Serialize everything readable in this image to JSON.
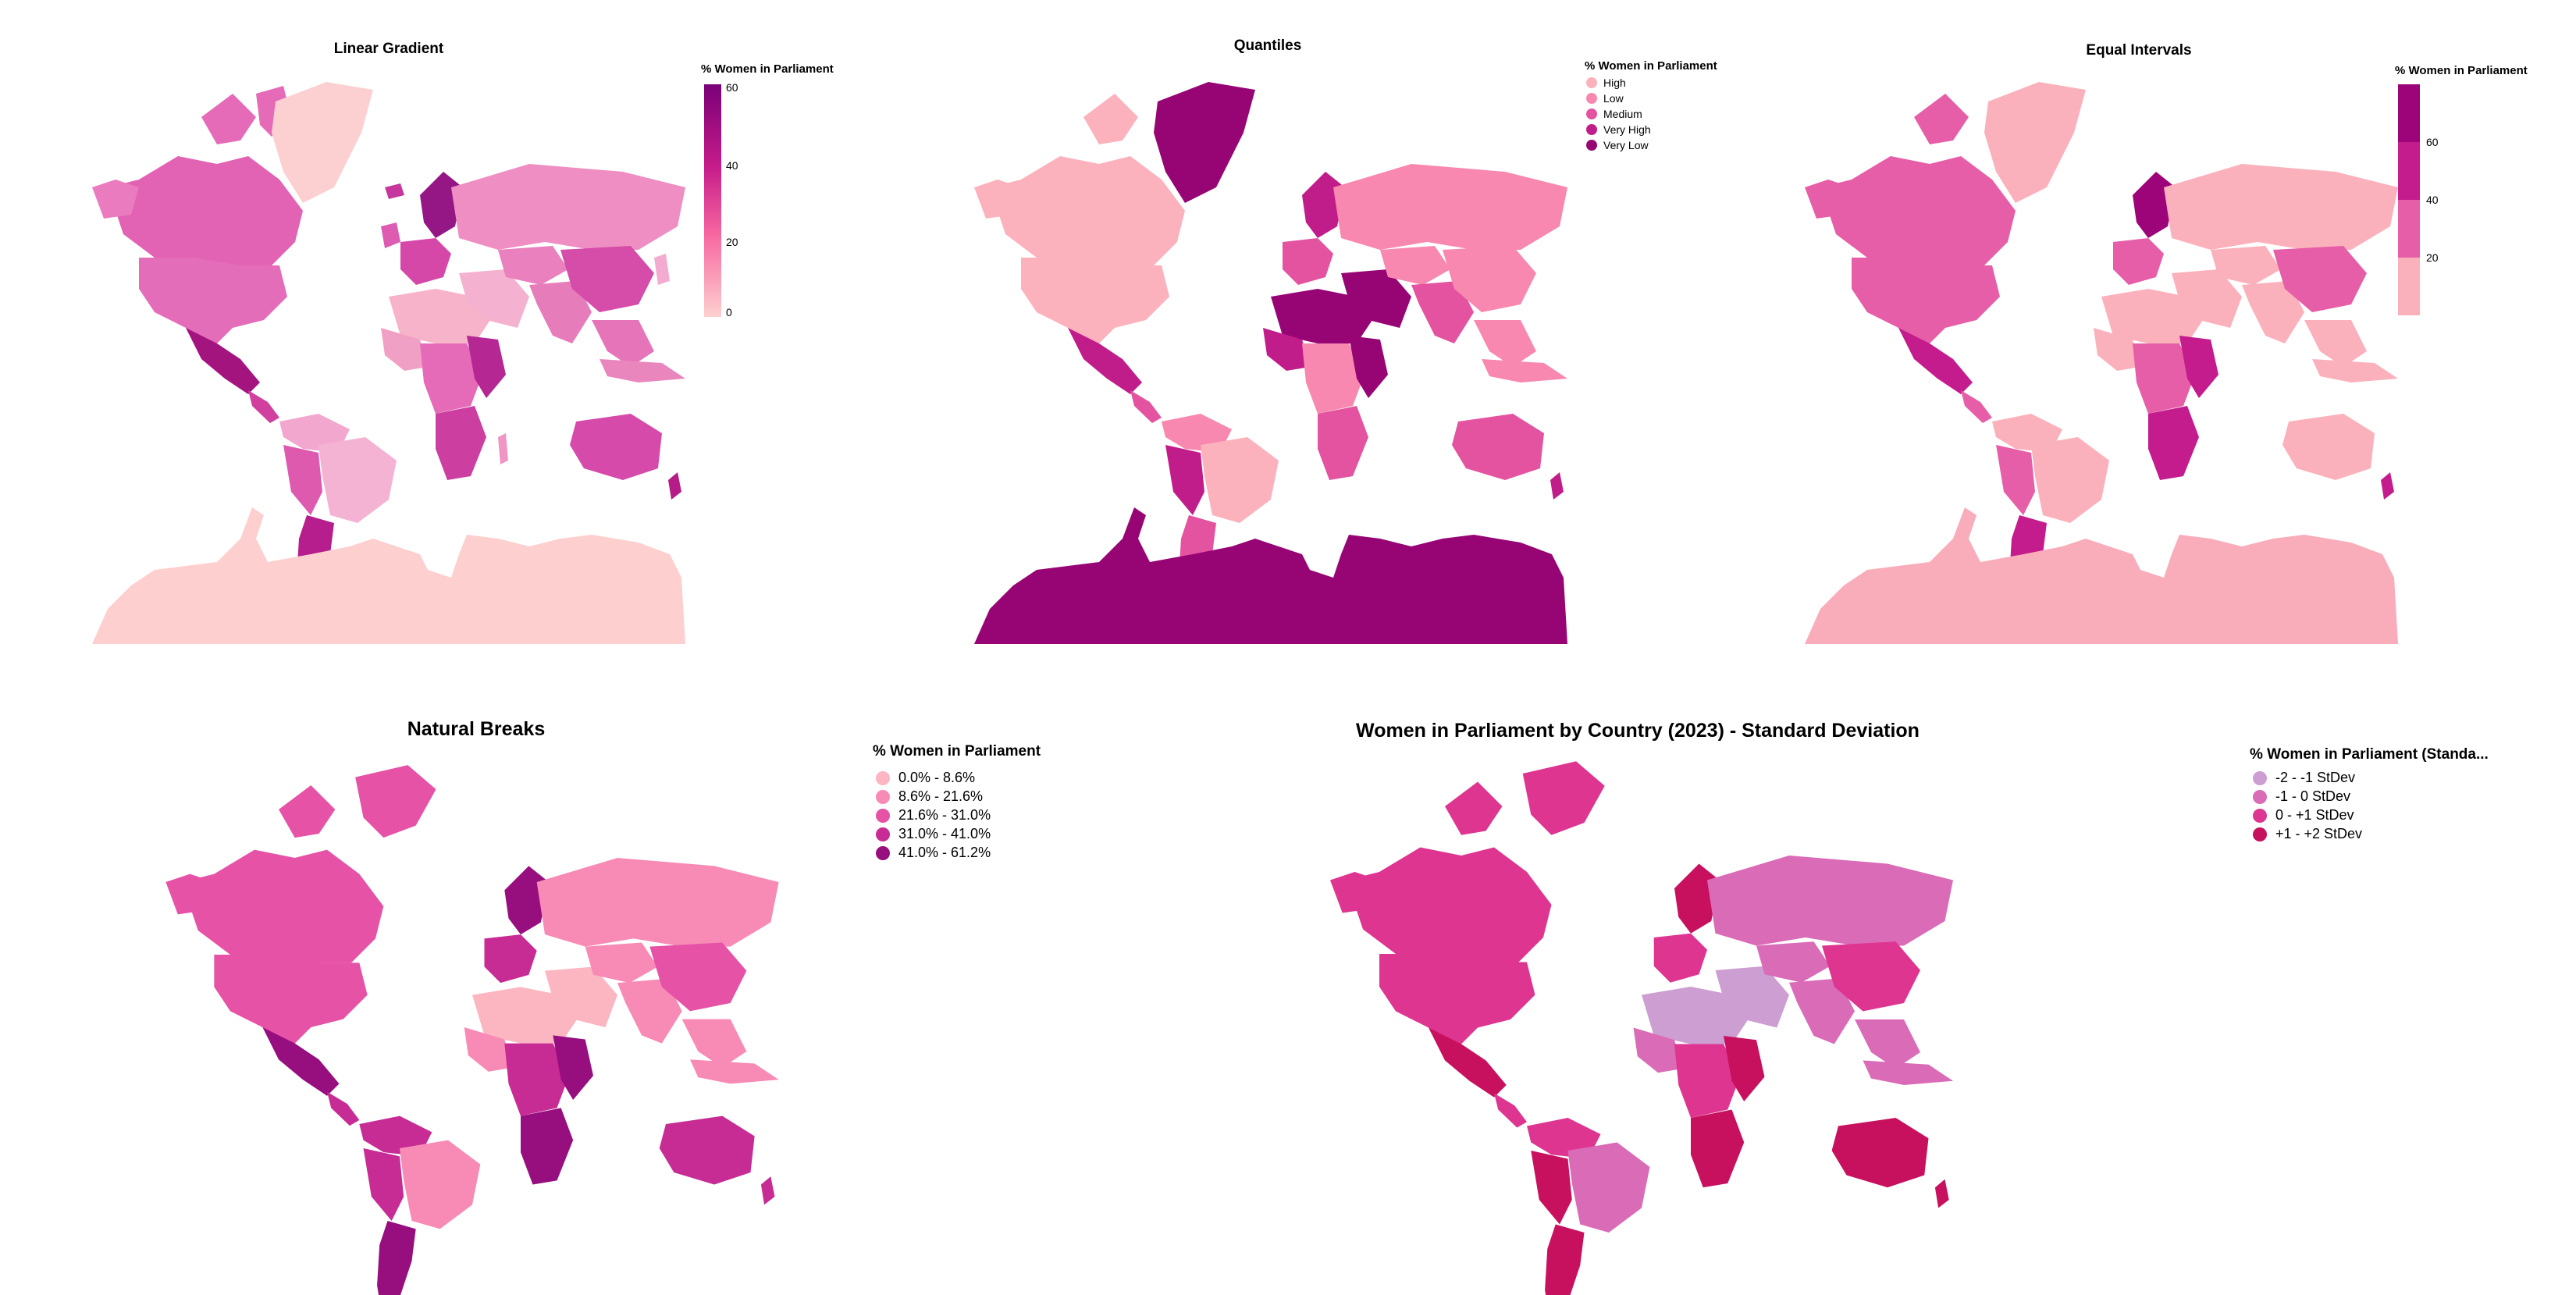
{
  "figure": {
    "panels": [
      {
        "id": "linear",
        "title": "Linear Gradient",
        "legend_title": "% Women in Parliament",
        "legend_type": "gradient",
        "gradient_ticks": [
          "0",
          "20",
          "40",
          "60"
        ],
        "colors": {
          "low": "#fdd0cf",
          "mid": "#df4db4",
          "high": "#7a0177",
          "antarctica": "#fdd0cf",
          "greenland": "#fcd0d0"
        }
      },
      {
        "id": "quantiles",
        "title": "Quantiles",
        "legend_title": "% Women in Parliament",
        "legend_type": "categorical",
        "items": [
          {
            "label": "High",
            "color": "#fbb2bd"
          },
          {
            "label": "Low",
            "color": "#f888af"
          },
          {
            "label": "Medium",
            "color": "#e3539f"
          },
          {
            "label": "Very High",
            "color": "#c11d8a"
          },
          {
            "label": "Very Low",
            "color": "#970574"
          }
        ]
      },
      {
        "id": "equal",
        "title": "Equal Intervals",
        "legend_title": "% Women in Parliament",
        "legend_type": "stepped",
        "stepped_ticks": [
          "20",
          "40",
          "60"
        ],
        "colors": [
          "#fbb1bb",
          "#e65ea7",
          "#c41b8d",
          "#9e0479"
        ]
      },
      {
        "id": "natural",
        "title": "Natural Breaks",
        "legend_title": "% Women in Parliament",
        "legend_type": "categorical",
        "items": [
          {
            "label": "0.0% - 8.6%",
            "color": "#fcb6c2"
          },
          {
            "label": "8.6% - 21.6%",
            "color": "#f78bb5"
          },
          {
            "label": "21.6% - 31.0%",
            "color": "#e652a6"
          },
          {
            "label": "31.0% - 41.0%",
            "color": "#c72b94"
          },
          {
            "label": "41.0% - 61.2%",
            "color": "#970e7f"
          }
        ]
      },
      {
        "id": "stdev",
        "title": "Women in Parliament by Country (2023) - Standard Deviation",
        "legend_title": "% Women in Parliament (Standa...",
        "legend_type": "categorical",
        "items": [
          {
            "label": "-2 - -1 StDev",
            "color": "#cc9ed1"
          },
          {
            "label": "-1 - 0 StDev",
            "color": "#da6bb7"
          },
          {
            "label": "0 - +1 StDev",
            "color": "#de3590"
          },
          {
            "label": "+1 - +2 StDev",
            "color": "#c8115e"
          }
        ]
      }
    ]
  }
}
